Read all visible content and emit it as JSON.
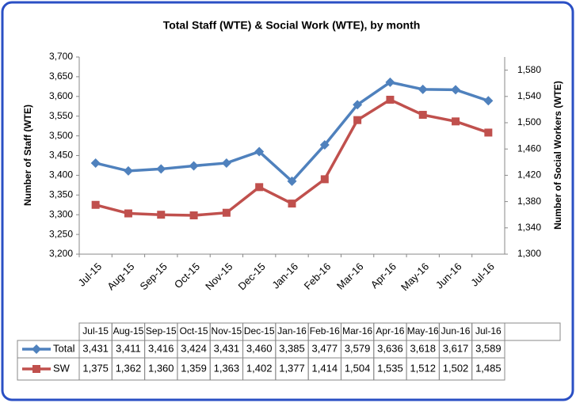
{
  "chart_data": {
    "type": "line",
    "title": "Total Staff (WTE) & Social Work (WTE), by month",
    "y_label": "Number of Staff (WTE)",
    "y2_label": "Number of Social Workers (WTE)",
    "categories": [
      "Jul-15",
      "Aug-15",
      "Sep-15",
      "Oct-15",
      "Nov-15",
      "Dec-15",
      "Jan-16",
      "Feb-16",
      "Mar-16",
      "Apr-16",
      "May-16",
      "Jun-16",
      "Jul-16"
    ],
    "series": [
      {
        "name": "Total",
        "color": "#4f81bd",
        "marker": "diamond",
        "values": [
          3431,
          3411,
          3416,
          3424,
          3431,
          3460,
          3385,
          3477,
          3579,
          3636,
          3618,
          3617,
          3589
        ],
        "value_labels": [
          "3,431",
          "3,411",
          "3,416",
          "3,424",
          "3,431",
          "3,460",
          "3,385",
          "3,477",
          "3,579",
          "3,636",
          "3,618",
          "3,617",
          "3,589"
        ]
      },
      {
        "name": "SW",
        "color": "#c0504d",
        "marker": "square",
        "axis": "y2",
        "values": [
          1375,
          1362,
          1360,
          1359,
          1363,
          1402,
          1377,
          1414,
          1504,
          1535,
          1512,
          1502,
          1485
        ],
        "value_labels": [
          "1,375",
          "1,362",
          "1,360",
          "1,359",
          "1,363",
          "1,402",
          "1,377",
          "1,414",
          "1,504",
          "1,535",
          "1,512",
          "1,502",
          "1,485"
        ]
      }
    ],
    "ylim": [
      3200,
      3700
    ],
    "yticks": [
      {
        "value": 3200,
        "label": "3,200"
      },
      {
        "value": 3250,
        "label": "3,250"
      },
      {
        "value": 3300,
        "label": "3,300"
      },
      {
        "value": 3350,
        "label": "3,350"
      },
      {
        "value": 3400,
        "label": "3,400"
      },
      {
        "value": 3450,
        "label": "3,450"
      },
      {
        "value": 3500,
        "label": "3,500"
      },
      {
        "value": 3550,
        "label": "3,550"
      },
      {
        "value": 3600,
        "label": "3,600"
      },
      {
        "value": 3650,
        "label": "3,650"
      },
      {
        "value": 3700,
        "label": "3,700"
      }
    ],
    "y2lim": [
      1300,
      1600
    ],
    "y2ticks": [
      {
        "value": 1300,
        "label": "1,300"
      },
      {
        "value": 1340,
        "label": "1,340"
      },
      {
        "value": 1380,
        "label": "1,380"
      },
      {
        "value": 1420,
        "label": "1,420"
      },
      {
        "value": 1460,
        "label": "1,460"
      },
      {
        "value": 1500,
        "label": "1,500"
      },
      {
        "value": 1540,
        "label": "1,540"
      },
      {
        "value": 1580,
        "label": "1,580"
      }
    ],
    "grid": false
  }
}
